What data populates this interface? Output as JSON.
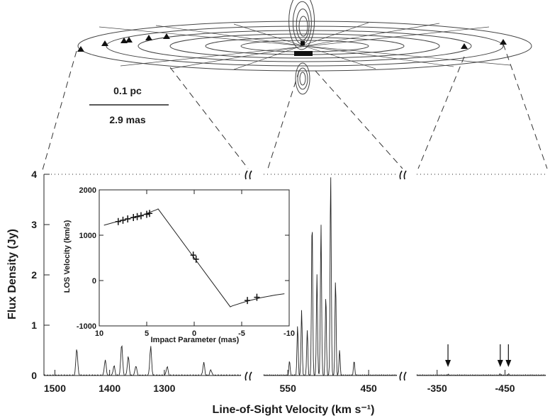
{
  "scale_bar": {
    "top": "0.1 pc",
    "bottom": "2.9 mas"
  },
  "chart_data": [
    {
      "type": "line",
      "ylabel": "Flux Density (Jy)",
      "xlabel": "Line-of-Sight Velocity (km s⁻¹)",
      "ylim": [
        0,
        4
      ],
      "yticks": [
        "0",
        "1",
        "2",
        "3",
        "4"
      ],
      "grid": false,
      "panels": [
        {
          "xlim": [
            1520,
            1160
          ],
          "xticks": [
            "1500",
            "1400",
            "1300"
          ],
          "peaks": [
            {
              "x": 1460,
              "y": 0.55
            },
            {
              "x": 1408,
              "y": 0.32
            },
            {
              "x": 1392,
              "y": 0.2
            },
            {
              "x": 1378,
              "y": 0.64
            },
            {
              "x": 1366,
              "y": 0.38
            },
            {
              "x": 1352,
              "y": 0.2
            },
            {
              "x": 1325,
              "y": 0.58
            },
            {
              "x": 1295,
              "y": 0.18
            },
            {
              "x": 1228,
              "y": 0.26
            },
            {
              "x": 1215,
              "y": 0.12
            }
          ]
        },
        {
          "xlim": [
            580,
            415
          ],
          "xticks": [
            "550",
            "450"
          ],
          "peaks": [
            {
              "x": 548,
              "y": 0.3
            },
            {
              "x": 538,
              "y": 1.0
            },
            {
              "x": 533,
              "y": 1.3
            },
            {
              "x": 526,
              "y": 0.9
            },
            {
              "x": 520,
              "y": 3.1
            },
            {
              "x": 514,
              "y": 2.0
            },
            {
              "x": 509,
              "y": 3.0
            },
            {
              "x": 503,
              "y": 1.6
            },
            {
              "x": 497,
              "y": 4.0
            },
            {
              "x": 491,
              "y": 1.9
            },
            {
              "x": 486,
              "y": 0.5
            },
            {
              "x": 468,
              "y": 0.3
            }
          ]
        },
        {
          "xlim": [
            -320,
            -510
          ],
          "xticks": [
            "-350",
            "-450"
          ],
          "peaks": [
            {
              "x": -366,
              "y": 0.02
            },
            {
              "x": -443,
              "y": 0.03
            },
            {
              "x": -455,
              "y": 0.03
            }
          ],
          "arrows_at": [
            -366,
            -443,
            -455
          ]
        }
      ]
    },
    {
      "type": "line",
      "title": "",
      "xlabel": "Impact Parameter (mas)",
      "ylabel": "LOS Velocity (km/s)",
      "xlim": [
        10,
        -10
      ],
      "ylim": [
        -1000,
        2000
      ],
      "xticks": [
        "10",
        "5",
        "0",
        "-5",
        "-10"
      ],
      "yticks": [
        "-1000",
        "0",
        "1000",
        "2000"
      ],
      "curve": [
        {
          "x": 9.5,
          "y": 1220
        },
        {
          "x": 8.5,
          "y": 1280
        },
        {
          "x": 7,
          "y": 1360
        },
        {
          "x": 5.5,
          "y": 1440
        },
        {
          "x": 4,
          "y": 1560
        },
        {
          "x": 3.8,
          "y": 1580
        },
        {
          "x": 0,
          "y": 500
        },
        {
          "x": -3.8,
          "y": -580
        },
        {
          "x": -4,
          "y": -560
        },
        {
          "x": -5.5,
          "y": -460
        },
        {
          "x": -7,
          "y": -380
        },
        {
          "x": -8.5,
          "y": -320
        },
        {
          "x": -9.5,
          "y": -290
        }
      ],
      "points": [
        {
          "x": 8.0,
          "y": 1300
        },
        {
          "x": 7.5,
          "y": 1330
        },
        {
          "x": 7.0,
          "y": 1360
        },
        {
          "x": 6.4,
          "y": 1390
        },
        {
          "x": 6.0,
          "y": 1410
        },
        {
          "x": 5.6,
          "y": 1430
        },
        {
          "x": 5.0,
          "y": 1460
        },
        {
          "x": 4.7,
          "y": 1480
        },
        {
          "x": 0.1,
          "y": 560
        },
        {
          "x": -0.2,
          "y": 470
        },
        {
          "x": -5.6,
          "y": -440
        },
        {
          "x": -6.6,
          "y": -370
        }
      ]
    }
  ]
}
